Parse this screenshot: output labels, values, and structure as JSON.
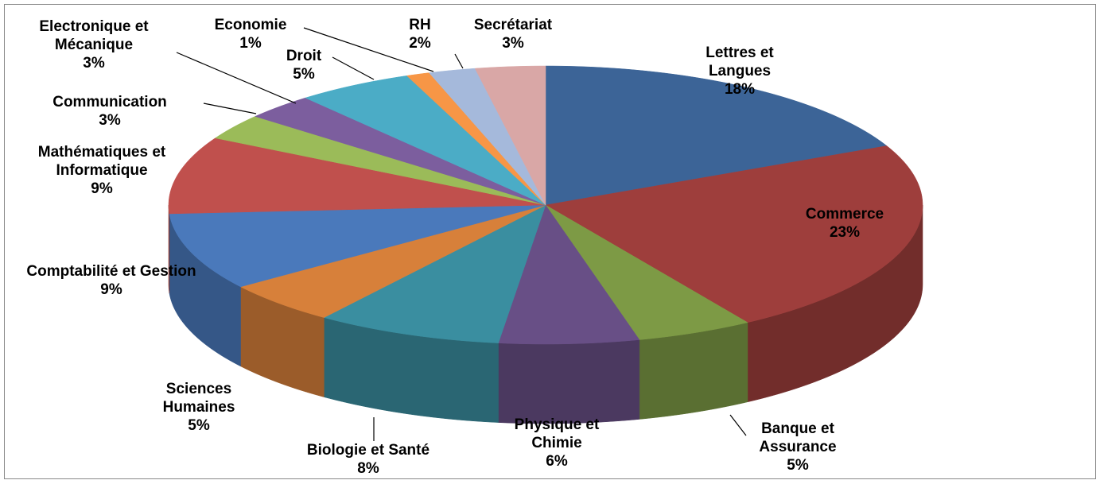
{
  "chart_data": {
    "type": "pie3d",
    "categories": [
      "Lettres et Langues",
      "Commerce",
      "Banque et Assurance",
      "Physique et Chimie",
      "Biologie et Santé",
      "Sciences Humaines",
      "Comptabilité et Gestion",
      "Mathématiques et Informatique",
      "Communication",
      "Electronique et Mécanique",
      "Droit",
      "Economie",
      "RH",
      "Secrétariat"
    ],
    "values": [
      18,
      23,
      5,
      6,
      8,
      5,
      9,
      9,
      3,
      3,
      5,
      1,
      2,
      3
    ],
    "value_labels": [
      "18%",
      "23%",
      "5%",
      "6%",
      "8%",
      "5%",
      "9%",
      "9%",
      "3%",
      "3%",
      "5%",
      "1%",
      "2%",
      "3%"
    ],
    "colors": [
      "#3c6497",
      "#9e3e3c",
      "#7d9a45",
      "#684f86",
      "#3a8ea0",
      "#d7803a",
      "#4a79bb",
      "#c0504d",
      "#9bbb59",
      "#7c5e9e",
      "#4bacc6",
      "#f79646",
      "#a5b9db",
      "#d9a7a6"
    ]
  }
}
